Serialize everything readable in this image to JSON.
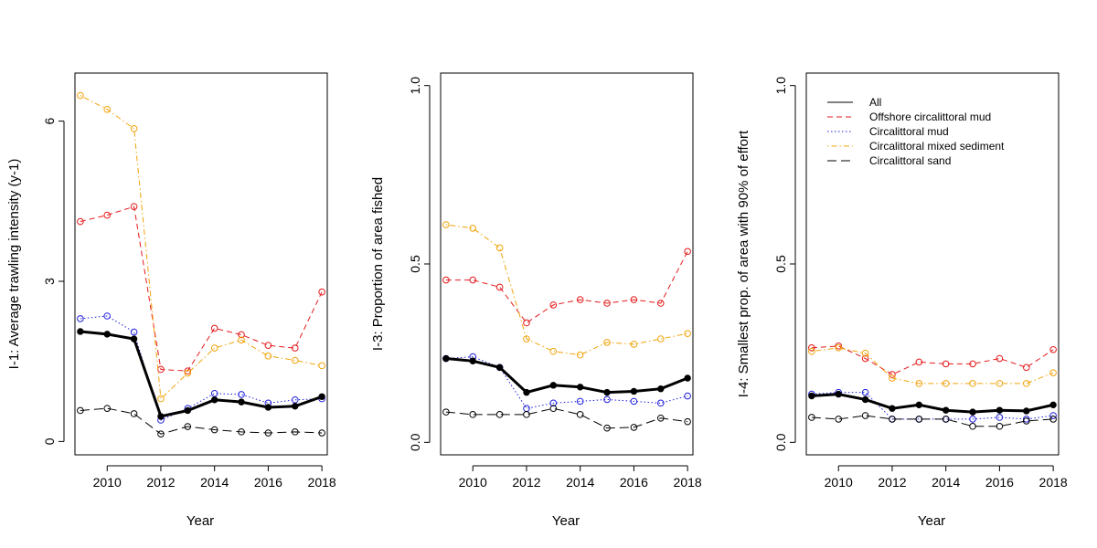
{
  "chart_data": [
    {
      "type": "line",
      "title": "",
      "xlabel": "Year",
      "ylabel": "I-1: Average trawling intensity (y-1)",
      "x": [
        2009,
        2010,
        2011,
        2012,
        2013,
        2014,
        2015,
        2016,
        2017,
        2018
      ],
      "xticks": [
        "2010",
        "2012",
        "2014",
        "2016",
        "2018"
      ],
      "xlim": [
        2008.8,
        2018.2
      ],
      "ylim": [
        -0.25,
        6.9
      ],
      "yticks": [
        "0",
        "3",
        "6"
      ],
      "grid": false,
      "legend": "",
      "series": [
        {
          "key": "offshore",
          "color": "#e41a1c",
          "dash": "dashed",
          "values": [
            4.12,
            4.24,
            4.4,
            1.35,
            1.32,
            2.12,
            2.0,
            1.8,
            1.75,
            2.8
          ]
        },
        {
          "key": "mud",
          "color": "#1f1fdb",
          "dash": "dotted",
          "values": [
            2.3,
            2.35,
            2.05,
            0.4,
            0.62,
            0.9,
            0.88,
            0.72,
            0.78,
            0.8
          ]
        },
        {
          "key": "mixed",
          "color": "#f0a30a",
          "dash": "dotdash",
          "values": [
            6.48,
            6.22,
            5.86,
            0.8,
            1.28,
            1.75,
            1.9,
            1.6,
            1.52,
            1.42
          ]
        },
        {
          "key": "sand",
          "color": "#000000",
          "dash": "longdash",
          "values": [
            0.58,
            0.62,
            0.52,
            0.14,
            0.28,
            0.22,
            0.18,
            0.16,
            0.18,
            0.16
          ]
        },
        {
          "key": "all",
          "color": "#000000",
          "dash": "solid",
          "bold": true,
          "values": [
            2.06,
            2.01,
            1.92,
            0.47,
            0.58,
            0.78,
            0.74,
            0.64,
            0.66,
            0.84
          ]
        }
      ]
    },
    {
      "type": "line",
      "title": "",
      "xlabel": "Year",
      "ylabel": "I-3: Proportion of area fished",
      "x": [
        2009,
        2010,
        2011,
        2012,
        2013,
        2014,
        2015,
        2016,
        2017,
        2018
      ],
      "xticks": [
        "2010",
        "2012",
        "2014",
        "2016",
        "2018"
      ],
      "xlim": [
        2008.8,
        2018.2
      ],
      "ylim": [
        -0.035,
        1.035
      ],
      "yticks": [
        "0.0",
        "0.5",
        "1.0"
      ],
      "grid": false,
      "legend": "",
      "series": [
        {
          "key": "offshore",
          "color": "#e41a1c",
          "dash": "dashed",
          "values": [
            0.455,
            0.455,
            0.435,
            0.335,
            0.385,
            0.4,
            0.39,
            0.4,
            0.39,
            0.535
          ]
        },
        {
          "key": "mud",
          "color": "#1f1fdb",
          "dash": "dotted",
          "values": [
            0.235,
            0.24,
            0.21,
            0.095,
            0.11,
            0.115,
            0.12,
            0.115,
            0.11,
            0.13
          ]
        },
        {
          "key": "mixed",
          "color": "#f0a30a",
          "dash": "dotdash",
          "values": [
            0.61,
            0.6,
            0.545,
            0.29,
            0.255,
            0.245,
            0.28,
            0.275,
            0.29,
            0.305
          ]
        },
        {
          "key": "sand",
          "color": "#000000",
          "dash": "longdash",
          "values": [
            0.085,
            0.078,
            0.078,
            0.078,
            0.095,
            0.078,
            0.04,
            0.042,
            0.068,
            0.058
          ]
        },
        {
          "key": "all",
          "color": "#000000",
          "dash": "solid",
          "bold": true,
          "values": [
            0.235,
            0.228,
            0.21,
            0.14,
            0.16,
            0.155,
            0.14,
            0.143,
            0.15,
            0.18
          ]
        }
      ]
    },
    {
      "type": "line",
      "title": "",
      "xlabel": "Year",
      "ylabel": "I-4: Smallest  prop. of area with 90% of effort",
      "x": [
        2009,
        2010,
        2011,
        2012,
        2013,
        2014,
        2015,
        2016,
        2017,
        2018
      ],
      "xticks": [
        "2010",
        "2012",
        "2014",
        "2016",
        "2018"
      ],
      "xlim": [
        2008.8,
        2018.2
      ],
      "ylim": [
        -0.035,
        1.035
      ],
      "yticks": [
        "0.0",
        "0.5",
        "1.0"
      ],
      "grid": false,
      "legend": "top-left",
      "series": [
        {
          "key": "offshore",
          "name": "Offshore circalittoral mud",
          "color": "#e41a1c",
          "dash": "dashed",
          "values": [
            0.265,
            0.27,
            0.235,
            0.19,
            0.225,
            0.22,
            0.22,
            0.235,
            0.21,
            0.26
          ]
        },
        {
          "key": "mud",
          "name": "Circalittoral mud",
          "color": "#1f1fdb",
          "dash": "dotted",
          "values": [
            0.135,
            0.14,
            0.14,
            0.065,
            0.065,
            0.065,
            0.065,
            0.07,
            0.065,
            0.075
          ]
        },
        {
          "key": "mixed",
          "name": "Circalittoral mixed sediment",
          "color": "#f0a30a",
          "dash": "dotdash",
          "values": [
            0.255,
            0.265,
            0.25,
            0.18,
            0.165,
            0.165,
            0.165,
            0.165,
            0.165,
            0.195
          ]
        },
        {
          "key": "sand",
          "name": "Circalittoral sand",
          "color": "#000000",
          "dash": "longdash",
          "values": [
            0.07,
            0.065,
            0.075,
            0.065,
            0.065,
            0.065,
            0.045,
            0.045,
            0.06,
            0.065
          ]
        },
        {
          "key": "all",
          "name": "All",
          "color": "#000000",
          "dash": "solid",
          "bold": true,
          "values": [
            0.13,
            0.135,
            0.12,
            0.095,
            0.105,
            0.09,
            0.085,
            0.09,
            0.088,
            0.105
          ]
        }
      ],
      "legend_order": [
        "all",
        "offshore",
        "mud",
        "mixed",
        "sand"
      ]
    }
  ]
}
